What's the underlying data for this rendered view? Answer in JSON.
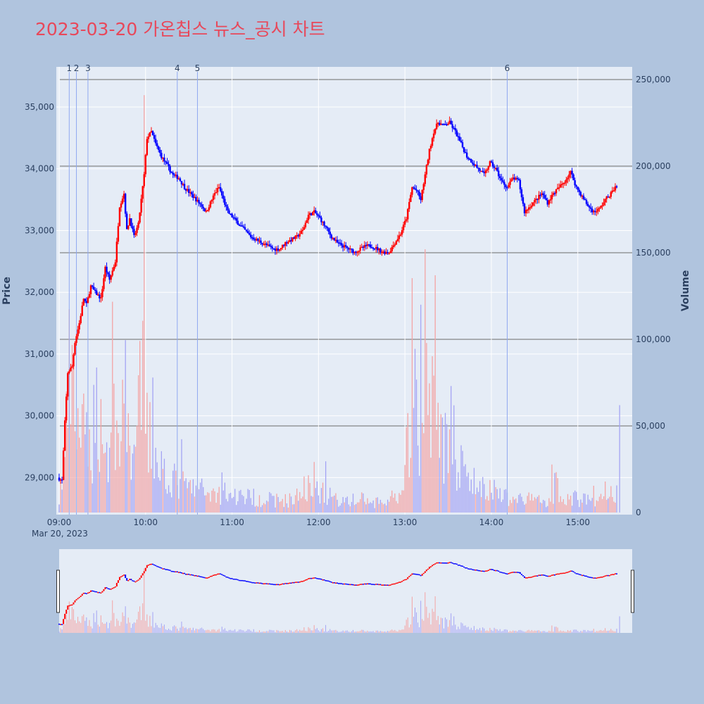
{
  "title": "2023-03-20 가온칩스 뉴스_공시 차트",
  "chart_data": {
    "type": "candlestick",
    "date_label": "Mar 20, 2023",
    "x_tick_labels": [
      "09:00",
      "10:00",
      "11:00",
      "12:00",
      "13:00",
      "14:00",
      "15:00"
    ],
    "y_label": "Price",
    "y2_label": "Volume",
    "y_ticks": [
      29000,
      30000,
      31000,
      32000,
      33000,
      34000,
      35000
    ],
    "y_tick_labels": [
      "29,000",
      "30,000",
      "31,000",
      "32,000",
      "33,000",
      "34,000",
      "35,000"
    ],
    "ylim": [
      28400,
      35650
    ],
    "y2_ticks": [
      0,
      50000,
      100000,
      150000,
      200000,
      250000
    ],
    "y2_tick_labels": [
      "0",
      "50,000",
      "100,000",
      "150,000",
      "200,000",
      "250,000"
    ],
    "y2lim": [
      0,
      250000
    ],
    "x_range_minutes": [
      0,
      390
    ],
    "colors": {
      "up": "#ff0000",
      "down": "#0000ff",
      "up_volume": "#f4a4a4",
      "down_volume": "#a4a4f4",
      "annotation": "#8fa8f0"
    },
    "annotations": [
      {
        "label": "1",
        "minute": 7
      },
      {
        "label": "2",
        "minute": 12
      },
      {
        "label": "3",
        "minute": 20
      },
      {
        "label": "4",
        "minute": 82
      },
      {
        "label": "5",
        "minute": 96
      },
      {
        "label": "6",
        "minute": 311
      }
    ],
    "price_path": [
      [
        0,
        29000
      ],
      [
        3,
        28950
      ],
      [
        5,
        29900
      ],
      [
        7,
        30700
      ],
      [
        10,
        30800
      ],
      [
        12,
        31200
      ],
      [
        15,
        31500
      ],
      [
        18,
        31900
      ],
      [
        20,
        31800
      ],
      [
        23,
        32100
      ],
      [
        26,
        32000
      ],
      [
        30,
        31900
      ],
      [
        33,
        32400
      ],
      [
        36,
        32200
      ],
      [
        40,
        32500
      ],
      [
        43,
        33400
      ],
      [
        46,
        33600
      ],
      [
        48,
        33000
      ],
      [
        50,
        33200
      ],
      [
        53,
        32900
      ],
      [
        56,
        33100
      ],
      [
        58,
        33500
      ],
      [
        60,
        33900
      ],
      [
        62,
        34500
      ],
      [
        65,
        34600
      ],
      [
        68,
        34400
      ],
      [
        72,
        34200
      ],
      [
        76,
        34050
      ],
      [
        80,
        33900
      ],
      [
        84,
        33850
      ],
      [
        88,
        33700
      ],
      [
        92,
        33600
      ],
      [
        96,
        33500
      ],
      [
        100,
        33400
      ],
      [
        103,
        33300
      ],
      [
        106,
        33450
      ],
      [
        109,
        33600
      ],
      [
        112,
        33700
      ],
      [
        115,
        33500
      ],
      [
        118,
        33300
      ],
      [
        122,
        33200
      ],
      [
        126,
        33100
      ],
      [
        130,
        33000
      ],
      [
        134,
        32900
      ],
      [
        138,
        32850
      ],
      [
        142,
        32800
      ],
      [
        146,
        32750
      ],
      [
        150,
        32700
      ],
      [
        154,
        32700
      ],
      [
        158,
        32800
      ],
      [
        162,
        32850
      ],
      [
        166,
        32900
      ],
      [
        170,
        33000
      ],
      [
        174,
        33250
      ],
      [
        178,
        33300
      ],
      [
        182,
        33200
      ],
      [
        186,
        33050
      ],
      [
        190,
        32900
      ],
      [
        194,
        32800
      ],
      [
        198,
        32750
      ],
      [
        202,
        32700
      ],
      [
        206,
        32650
      ],
      [
        210,
        32700
      ],
      [
        214,
        32750
      ],
      [
        218,
        32750
      ],
      [
        222,
        32700
      ],
      [
        226,
        32650
      ],
      [
        230,
        32650
      ],
      [
        234,
        32800
      ],
      [
        238,
        32950
      ],
      [
        242,
        33200
      ],
      [
        246,
        33700
      ],
      [
        249,
        33650
      ],
      [
        252,
        33500
      ],
      [
        255,
        33900
      ],
      [
        258,
        34300
      ],
      [
        261,
        34600
      ],
      [
        264,
        34750
      ],
      [
        268,
        34700
      ],
      [
        272,
        34750
      ],
      [
        276,
        34600
      ],
      [
        280,
        34400
      ],
      [
        284,
        34200
      ],
      [
        288,
        34100
      ],
      [
        292,
        34000
      ],
      [
        296,
        33900
      ],
      [
        300,
        34100
      ],
      [
        304,
        34000
      ],
      [
        308,
        33800
      ],
      [
        312,
        33700
      ],
      [
        316,
        33850
      ],
      [
        320,
        33800
      ],
      [
        324,
        33300
      ],
      [
        328,
        33400
      ],
      [
        332,
        33500
      ],
      [
        336,
        33600
      ],
      [
        340,
        33450
      ],
      [
        344,
        33600
      ],
      [
        348,
        33700
      ],
      [
        352,
        33800
      ],
      [
        356,
        33950
      ],
      [
        360,
        33700
      ],
      [
        364,
        33550
      ],
      [
        368,
        33400
      ],
      [
        372,
        33300
      ],
      [
        376,
        33350
      ],
      [
        380,
        33500
      ],
      [
        384,
        33600
      ],
      [
        387,
        33700
      ]
    ],
    "volume_path": [
      [
        0,
        8000
      ],
      [
        4,
        35000
      ],
      [
        7,
        85000
      ],
      [
        10,
        65000
      ],
      [
        14,
        55000
      ],
      [
        18,
        45000
      ],
      [
        22,
        40000
      ],
      [
        26,
        70000
      ],
      [
        30,
        50000
      ],
      [
        34,
        35000
      ],
      [
        38,
        65000
      ],
      [
        41,
        40000
      ],
      [
        44,
        90000
      ],
      [
        47,
        60000
      ],
      [
        50,
        42000
      ],
      [
        54,
        38000
      ],
      [
        56,
        75000
      ],
      [
        58,
        90000
      ],
      [
        60,
        55000
      ],
      [
        63,
        45000
      ],
      [
        66,
        40000
      ],
      [
        70,
        30000
      ],
      [
        75,
        25000
      ],
      [
        80,
        20000
      ],
      [
        85,
        18000
      ],
      [
        90,
        16000
      ],
      [
        95,
        15000
      ],
      [
        100,
        14000
      ],
      [
        110,
        12000
      ],
      [
        120,
        11000
      ],
      [
        130,
        10000
      ],
      [
        140,
        9000
      ],
      [
        150,
        8000
      ],
      [
        160,
        8000
      ],
      [
        170,
        12000
      ],
      [
        175,
        25000
      ],
      [
        180,
        15000
      ],
      [
        190,
        9000
      ],
      [
        200,
        8000
      ],
      [
        210,
        7000
      ],
      [
        220,
        6000
      ],
      [
        230,
        7000
      ],
      [
        238,
        9000
      ],
      [
        243,
        55000
      ],
      [
        246,
        80000
      ],
      [
        249,
        50000
      ],
      [
        252,
        40000
      ],
      [
        255,
        70000
      ],
      [
        258,
        90000
      ],
      [
        261,
        60000
      ],
      [
        264,
        50000
      ],
      [
        267,
        45000
      ],
      [
        270,
        40000
      ],
      [
        273,
        60000
      ],
      [
        276,
        35000
      ],
      [
        280,
        25000
      ],
      [
        285,
        20000
      ],
      [
        290,
        18000
      ],
      [
        295,
        15000
      ],
      [
        300,
        13000
      ],
      [
        305,
        12000
      ],
      [
        310,
        10000
      ],
      [
        315,
        9000
      ],
      [
        320,
        9000
      ],
      [
        330,
        8000
      ],
      [
        340,
        8000
      ],
      [
        345,
        18000
      ],
      [
        350,
        10000
      ],
      [
        360,
        9000
      ],
      [
        370,
        8000
      ],
      [
        380,
        8000
      ],
      [
        387,
        15000
      ],
      [
        390,
        50000
      ]
    ]
  }
}
